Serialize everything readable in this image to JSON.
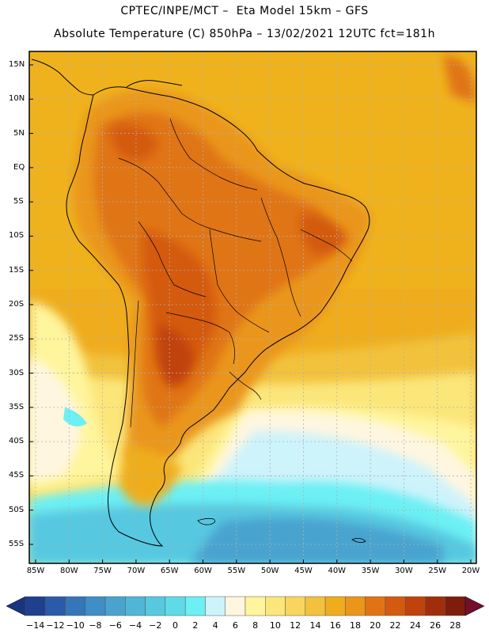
{
  "header": {
    "line1": "CPTEC/INPE/MCT –  Eta Model 15km – GFS",
    "line2": "Absolute Temperature (C) 850hPa – 13/02/2021 12UTC fct=181h"
  },
  "map": {
    "region": "South America",
    "lat_labels": [
      "15N",
      "10N",
      "5N",
      "EQ",
      "5S",
      "10S",
      "15S",
      "20S",
      "25S",
      "30S",
      "35S",
      "40S",
      "45S",
      "50S",
      "55S"
    ],
    "lon_labels": [
      "85W",
      "80W",
      "75W",
      "70W",
      "65W",
      "60W",
      "55W",
      "50W",
      "45W",
      "40W",
      "35W",
      "30W",
      "25W",
      "20W"
    ]
  },
  "colorbar": {
    "labels": [
      "-14",
      "-12",
      "-10",
      "-8",
      "-6",
      "-4",
      "-2",
      "0",
      "2",
      "4",
      "6",
      "8",
      "10",
      "12",
      "14",
      "16",
      "18",
      "20",
      "22",
      "24",
      "26",
      "28"
    ],
    "colors": [
      "#1f3f8f",
      "#2a5aa8",
      "#3576b8",
      "#3f8ec6",
      "#4aa3cf",
      "#50b6d8",
      "#57c8e0",
      "#5fdbe8",
      "#6cf0f4",
      "#cdf3fb",
      "#fff6e0",
      "#fff59c",
      "#fbe67a",
      "#f8d65e",
      "#f2c23e",
      "#efad1e",
      "#ea961a",
      "#e07414",
      "#d45a10",
      "#c0420c",
      "#a02e0a",
      "#7e1d0c"
    ],
    "under_color": "#1a3580",
    "over_color": "#720f2e"
  }
}
